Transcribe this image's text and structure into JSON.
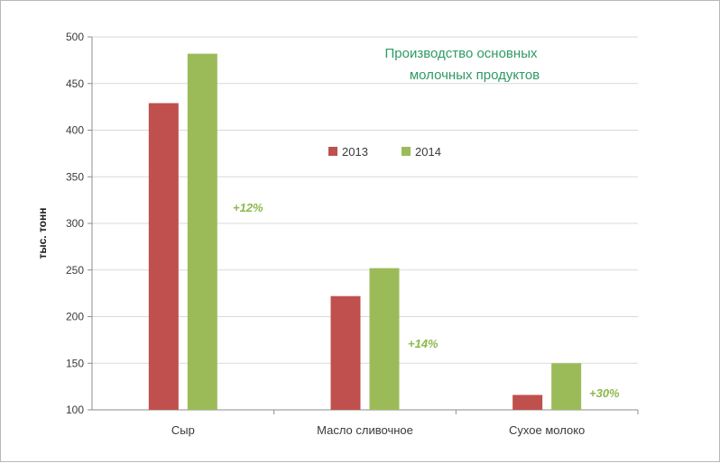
{
  "chart_data": {
    "type": "bar",
    "title_lines": [
      "Производство основных",
      "молочных продуктов"
    ],
    "ylabel": "тыс. тонн",
    "xlabel": "",
    "ylim": [
      100,
      500
    ],
    "yticks": [
      100,
      150,
      200,
      250,
      300,
      350,
      400,
      450,
      500
    ],
    "grid": true,
    "legend_position": "center",
    "categories": [
      "Сыр",
      "Масло сливочное",
      "Сухое молоко"
    ],
    "series": [
      {
        "name": "2013",
        "color": "#c0504d",
        "values": [
          429,
          222,
          116
        ]
      },
      {
        "name": "2014",
        "color": "#9bbb59",
        "values": [
          482,
          252,
          150
        ]
      }
    ],
    "annotations": [
      "+12%",
      "+14%",
      "+30%"
    ],
    "annotation_color": "#8db84a"
  }
}
